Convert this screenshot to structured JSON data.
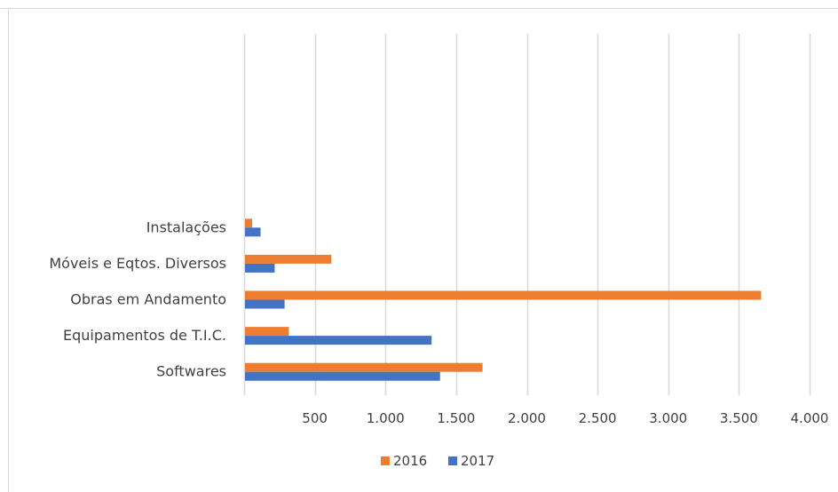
{
  "chart_data": {
    "type": "bar",
    "orientation": "horizontal",
    "title": "",
    "xlabel": "",
    "ylabel": "",
    "categories": [
      "Softwares",
      "Equipamentos de T.I.C.",
      "Obras em Andamento",
      "Móveis e Eqtos. Diversos",
      "Instalações"
    ],
    "series": [
      {
        "name": "2016",
        "color": "#ED7D31",
        "values": [
          1680,
          310,
          3650,
          610,
          50
        ]
      },
      {
        "name": "2017",
        "color": "#4472C4",
        "values": [
          1380,
          1320,
          280,
          210,
          110
        ]
      }
    ],
    "xlim": [
      0,
      4000
    ],
    "xticks": [
      500,
      1000,
      1500,
      2000,
      2500,
      3000,
      3500,
      4000
    ],
    "xtick_labels": [
      "500",
      "1.000",
      "1.500",
      "2.000",
      "2.500",
      "3.000",
      "3.500",
      "4.000"
    ],
    "grid": "vertical",
    "legend_position": "bottom"
  }
}
